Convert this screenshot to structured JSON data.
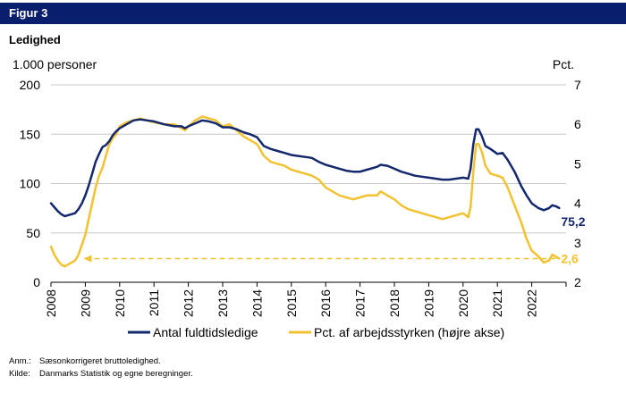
{
  "figure_label": "Figur 3",
  "chart_data": {
    "type": "line",
    "title": "Ledighed",
    "left_axis": {
      "unit": "1.000 personer",
      "range": [
        0,
        200
      ],
      "ticks": [
        0,
        50,
        100,
        150,
        200
      ]
    },
    "right_axis": {
      "unit": "Pct.",
      "range": [
        2,
        7
      ],
      "ticks": [
        2,
        3,
        4,
        5,
        6,
        7
      ]
    },
    "x_axis": {
      "range": [
        2008,
        2023
      ],
      "ticks": [
        "2008",
        "2009",
        "2010",
        "2011",
        "2012",
        "2013",
        "2014",
        "2015",
        "2016",
        "2017",
        "2018",
        "2019",
        "2020",
        "2021",
        "2022"
      ]
    },
    "grid": "horizontal",
    "legend_placement": "bottom",
    "series": [
      {
        "name": "Antal fuldtidsledige",
        "axis": "left",
        "color": "#14286e",
        "end_label": "75,2",
        "points": [
          [
            2008.0,
            80
          ],
          [
            2008.1,
            76
          ],
          [
            2008.2,
            72
          ],
          [
            2008.3,
            69
          ],
          [
            2008.4,
            67
          ],
          [
            2008.5,
            68
          ],
          [
            2008.6,
            69
          ],
          [
            2008.7,
            70
          ],
          [
            2008.8,
            74
          ],
          [
            2008.9,
            80
          ],
          [
            2009.0,
            88
          ],
          [
            2009.1,
            98
          ],
          [
            2009.2,
            110
          ],
          [
            2009.3,
            122
          ],
          [
            2009.4,
            130
          ],
          [
            2009.5,
            137
          ],
          [
            2009.6,
            139
          ],
          [
            2009.7,
            143
          ],
          [
            2009.8,
            149
          ],
          [
            2009.9,
            153
          ],
          [
            2010.0,
            156
          ],
          [
            2010.2,
            160
          ],
          [
            2010.4,
            164
          ],
          [
            2010.6,
            165
          ],
          [
            2010.8,
            164
          ],
          [
            2011.0,
            163
          ],
          [
            2011.3,
            160
          ],
          [
            2011.6,
            158
          ],
          [
            2011.8,
            158
          ],
          [
            2011.9,
            156
          ],
          [
            2012.0,
            158
          ],
          [
            2012.2,
            161
          ],
          [
            2012.4,
            164
          ],
          [
            2012.6,
            163
          ],
          [
            2012.8,
            161
          ],
          [
            2013.0,
            157
          ],
          [
            2013.2,
            157
          ],
          [
            2013.4,
            155
          ],
          [
            2013.6,
            152
          ],
          [
            2013.8,
            150
          ],
          [
            2014.0,
            147
          ],
          [
            2014.2,
            138
          ],
          [
            2014.4,
            135
          ],
          [
            2014.6,
            133
          ],
          [
            2014.8,
            131
          ],
          [
            2015.0,
            129
          ],
          [
            2015.2,
            128
          ],
          [
            2015.4,
            127
          ],
          [
            2015.6,
            126
          ],
          [
            2015.8,
            122
          ],
          [
            2016.0,
            119
          ],
          [
            2016.2,
            117
          ],
          [
            2016.4,
            115
          ],
          [
            2016.6,
            113
          ],
          [
            2016.8,
            112
          ],
          [
            2017.0,
            112
          ],
          [
            2017.2,
            114
          ],
          [
            2017.4,
            116
          ],
          [
            2017.5,
            117
          ],
          [
            2017.6,
            119
          ],
          [
            2017.8,
            118
          ],
          [
            2018.0,
            115
          ],
          [
            2018.2,
            112
          ],
          [
            2018.4,
            110
          ],
          [
            2018.6,
            108
          ],
          [
            2018.8,
            107
          ],
          [
            2019.0,
            106
          ],
          [
            2019.2,
            105
          ],
          [
            2019.4,
            104
          ],
          [
            2019.6,
            104
          ],
          [
            2019.8,
            105
          ],
          [
            2020.0,
            106
          ],
          [
            2020.15,
            105
          ],
          [
            2020.22,
            115
          ],
          [
            2020.3,
            140
          ],
          [
            2020.38,
            155
          ],
          [
            2020.45,
            155
          ],
          [
            2020.55,
            148
          ],
          [
            2020.65,
            138
          ],
          [
            2020.8,
            135
          ],
          [
            2021.0,
            130
          ],
          [
            2021.15,
            131
          ],
          [
            2021.3,
            124
          ],
          [
            2021.5,
            112
          ],
          [
            2021.7,
            97
          ],
          [
            2021.85,
            88
          ],
          [
            2022.0,
            80
          ],
          [
            2022.2,
            75
          ],
          [
            2022.35,
            73
          ],
          [
            2022.5,
            75
          ],
          [
            2022.6,
            78
          ],
          [
            2022.7,
            77
          ],
          [
            2022.8,
            75.2
          ]
        ]
      },
      {
        "name": "Pct. af arbejdsstyrken (højre akse)",
        "axis": "right",
        "color": "#f2c230",
        "end_label": "2,6",
        "points": [
          [
            2008.0,
            2.9
          ],
          [
            2008.1,
            2.7
          ],
          [
            2008.2,
            2.55
          ],
          [
            2008.3,
            2.45
          ],
          [
            2008.4,
            2.4
          ],
          [
            2008.5,
            2.45
          ],
          [
            2008.6,
            2.5
          ],
          [
            2008.7,
            2.55
          ],
          [
            2008.8,
            2.7
          ],
          [
            2008.9,
            2.95
          ],
          [
            2009.0,
            3.2
          ],
          [
            2009.1,
            3.6
          ],
          [
            2009.2,
            4.0
          ],
          [
            2009.3,
            4.4
          ],
          [
            2009.4,
            4.7
          ],
          [
            2009.5,
            4.9
          ],
          [
            2009.6,
            5.2
          ],
          [
            2009.7,
            5.5
          ],
          [
            2009.8,
            5.65
          ],
          [
            2009.9,
            5.75
          ],
          [
            2010.0,
            5.95
          ],
          [
            2010.2,
            6.05
          ],
          [
            2010.4,
            6.1
          ],
          [
            2010.6,
            6.15
          ],
          [
            2010.8,
            6.1
          ],
          [
            2011.0,
            6.05
          ],
          [
            2011.3,
            6.0
          ],
          [
            2011.6,
            6.0
          ],
          [
            2011.8,
            5.9
          ],
          [
            2011.9,
            5.85
          ],
          [
            2012.0,
            5.95
          ],
          [
            2012.2,
            6.1
          ],
          [
            2012.4,
            6.2
          ],
          [
            2012.6,
            6.15
          ],
          [
            2012.8,
            6.1
          ],
          [
            2013.0,
            5.95
          ],
          [
            2013.2,
            6.0
          ],
          [
            2013.4,
            5.85
          ],
          [
            2013.6,
            5.7
          ],
          [
            2013.8,
            5.6
          ],
          [
            2014.0,
            5.5
          ],
          [
            2014.2,
            5.2
          ],
          [
            2014.4,
            5.05
          ],
          [
            2014.6,
            5.0
          ],
          [
            2014.8,
            4.95
          ],
          [
            2015.0,
            4.85
          ],
          [
            2015.2,
            4.8
          ],
          [
            2015.4,
            4.75
          ],
          [
            2015.6,
            4.7
          ],
          [
            2015.8,
            4.6
          ],
          [
            2016.0,
            4.4
          ],
          [
            2016.2,
            4.3
          ],
          [
            2016.4,
            4.2
          ],
          [
            2016.6,
            4.15
          ],
          [
            2016.8,
            4.1
          ],
          [
            2017.0,
            4.15
          ],
          [
            2017.2,
            4.2
          ],
          [
            2017.4,
            4.2
          ],
          [
            2017.5,
            4.2
          ],
          [
            2017.6,
            4.3
          ],
          [
            2017.8,
            4.2
          ],
          [
            2018.0,
            4.1
          ],
          [
            2018.2,
            3.95
          ],
          [
            2018.4,
            3.85
          ],
          [
            2018.6,
            3.8
          ],
          [
            2018.8,
            3.75
          ],
          [
            2019.0,
            3.7
          ],
          [
            2019.2,
            3.65
          ],
          [
            2019.4,
            3.6
          ],
          [
            2019.6,
            3.65
          ],
          [
            2019.8,
            3.7
          ],
          [
            2020.0,
            3.75
          ],
          [
            2020.15,
            3.65
          ],
          [
            2020.22,
            3.9
          ],
          [
            2020.3,
            4.8
          ],
          [
            2020.38,
            5.5
          ],
          [
            2020.45,
            5.5
          ],
          [
            2020.55,
            5.3
          ],
          [
            2020.65,
            4.95
          ],
          [
            2020.8,
            4.75
          ],
          [
            2021.0,
            4.7
          ],
          [
            2021.15,
            4.65
          ],
          [
            2021.3,
            4.4
          ],
          [
            2021.5,
            3.95
          ],
          [
            2021.7,
            3.5
          ],
          [
            2021.85,
            3.1
          ],
          [
            2022.0,
            2.8
          ],
          [
            2022.2,
            2.65
          ],
          [
            2022.35,
            2.5
          ],
          [
            2022.5,
            2.55
          ],
          [
            2022.6,
            2.7
          ],
          [
            2022.7,
            2.65
          ],
          [
            2022.8,
            2.6
          ]
        ]
      }
    ],
    "annotation": {
      "type": "dashed-arrow",
      "axis": "right",
      "from": [
        2022.7,
        2.6
      ],
      "to": [
        2008.95,
        2.6
      ]
    }
  },
  "notes": {
    "anm_key": "Anm.:",
    "anm_text": "Sæsonkorrigeret bruttoledighed.",
    "kilde_key": "Kilde:",
    "kilde_text": "Danmarks Statistik og egne beregninger."
  }
}
